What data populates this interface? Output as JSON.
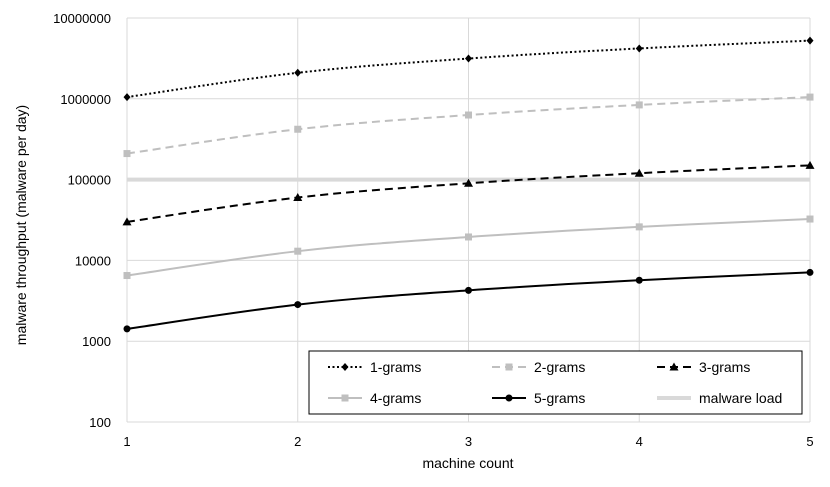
{
  "chart_data": {
    "type": "line",
    "xlabel": "machine count",
    "ylabel": "malware throughput (malware per day)",
    "x": [
      1,
      2,
      3,
      4,
      5
    ],
    "x_ticks": [
      "1",
      "2",
      "3",
      "4",
      "5"
    ],
    "y_scale": "log",
    "ylim": [
      100,
      10000000
    ],
    "y_ticks": [
      {
        "value": 100,
        "label": "100"
      },
      {
        "value": 1000,
        "label": "1000"
      },
      {
        "value": 10000,
        "label": "10000"
      },
      {
        "value": 100000,
        "label": "100000"
      },
      {
        "value": 1000000,
        "label": "1000000"
      },
      {
        "value": 10000000,
        "label": "10000000"
      }
    ],
    "grid": true,
    "legend_position": "bottom-right",
    "series": [
      {
        "name": "1-grams",
        "values": [
          1050000,
          2100000,
          3150000,
          4200000,
          5250000
        ],
        "color": "#000000",
        "dash": "dotted",
        "marker": "diamond",
        "width": 2
      },
      {
        "name": "2-grams",
        "values": [
          210000,
          420000,
          630000,
          840000,
          1050000
        ],
        "color": "#bfbfbf",
        "dash": "dashed",
        "marker": "square",
        "width": 2
      },
      {
        "name": "3-grams",
        "values": [
          30000,
          60000,
          90000,
          120000,
          150000
        ],
        "color": "#000000",
        "dash": "dashed",
        "marker": "triangle",
        "width": 2
      },
      {
        "name": "4-grams",
        "values": [
          6500,
          13000,
          19500,
          26000,
          32500
        ],
        "color": "#bfbfbf",
        "dash": "solid",
        "marker": "square",
        "width": 2
      },
      {
        "name": "5-grams",
        "values": [
          1420,
          2840,
          4260,
          5680,
          7100
        ],
        "color": "#000000",
        "dash": "solid",
        "marker": "circle",
        "width": 2
      },
      {
        "name": "malware load",
        "values": [
          100000,
          100000,
          100000,
          100000,
          100000
        ],
        "color": "#d9d9d9",
        "dash": "solid",
        "marker": "none",
        "width": 4
      }
    ]
  }
}
